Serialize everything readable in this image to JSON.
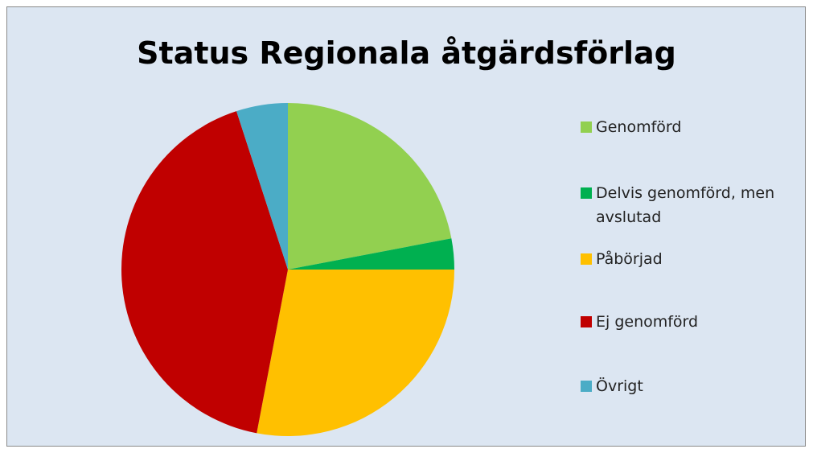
{
  "chart_data": {
    "type": "pie",
    "title": "Status Regionala åtgärdsförlag",
    "categories": [
      "Genomförd",
      "Delvis genomförd, men avslutad",
      "Påbörjad",
      "Ej genomförd",
      "Övrigt"
    ],
    "values": [
      22,
      3,
      28,
      42,
      5
    ],
    "colors": [
      "#92d050",
      "#00b050",
      "#ffc000",
      "#c00000",
      "#4bacc6"
    ],
    "legend": "right"
  }
}
